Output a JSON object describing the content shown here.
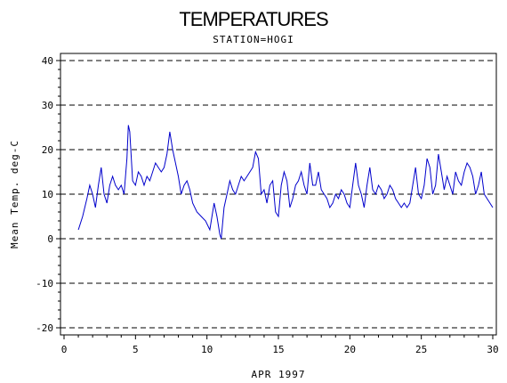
{
  "chart_data": {
    "type": "line",
    "title": "TEMPERATURES",
    "subtitle": "STATION=HOGI",
    "xlabel": "APR 1997",
    "ylabel": "Mean Temp. deg-C",
    "xlim": [
      0,
      30
    ],
    "ylim": [
      -20,
      40
    ],
    "x_ticks": [
      0,
      5,
      10,
      15,
      20,
      25,
      30
    ],
    "y_ticks": [
      -20,
      -10,
      0,
      10,
      20,
      30,
      40
    ],
    "grid": "horizontal dashed",
    "line_color": "#0000cc",
    "series": [
      {
        "x": [
          1.0,
          1.3,
          1.6,
          1.8,
          2.0,
          2.2,
          2.4,
          2.6,
          2.8,
          3.0,
          3.2,
          3.4,
          3.6,
          3.8,
          4.0,
          4.2,
          4.4,
          4.5,
          4.6,
          4.8,
          5.0,
          5.2,
          5.4,
          5.6,
          5.8,
          6.0,
          6.2,
          6.4,
          6.6,
          6.8,
          7.0,
          7.2,
          7.4,
          7.6,
          7.8,
          8.0,
          8.2,
          8.4,
          8.6,
          8.8,
          9.0,
          9.3,
          9.6,
          9.9,
          10.2,
          10.5,
          10.7,
          10.9,
          11.0,
          11.2,
          11.4,
          11.6,
          11.8,
          12.0,
          12.2,
          12.4,
          12.6,
          12.8,
          13.0,
          13.2,
          13.4,
          13.6,
          13.8,
          14.0,
          14.2,
          14.4,
          14.6,
          14.8,
          15.0,
          15.2,
          15.4,
          15.6,
          15.8,
          16.0,
          16.2,
          16.4,
          16.6,
          16.8,
          17.0,
          17.2,
          17.4,
          17.6,
          17.8,
          18.0,
          18.2,
          18.4,
          18.6,
          18.8,
          19.0,
          19.2,
          19.4,
          19.6,
          19.8,
          20.0,
          20.2,
          20.4,
          20.6,
          20.8,
          21.0,
          21.2,
          21.4,
          21.6,
          21.8,
          22.0,
          22.2,
          22.4,
          22.6,
          22.8,
          23.0,
          23.2,
          23.4,
          23.6,
          23.8,
          24.0,
          24.2,
          24.4,
          24.6,
          24.8,
          25.0,
          25.2,
          25.4,
          25.6,
          25.8,
          26.0,
          26.2,
          26.4,
          26.6,
          26.8,
          27.0,
          27.2,
          27.4,
          27.6,
          27.8,
          28.0,
          28.2,
          28.4,
          28.6,
          28.8,
          29.0,
          29.2,
          29.4,
          29.6,
          29.8,
          30.0
        ],
        "values": [
          2,
          5,
          9,
          12,
          10,
          7,
          12,
          16,
          10,
          8,
          12,
          14,
          12,
          11,
          12,
          10,
          18,
          25.5,
          24,
          13,
          12,
          15,
          14,
          12,
          14,
          13,
          15,
          17,
          16,
          15,
          16,
          19,
          24,
          20,
          17,
          14,
          10,
          12,
          13,
          11,
          8,
          6,
          5,
          4,
          2,
          8,
          5,
          1,
          0,
          7,
          10,
          13,
          11,
          10,
          12,
          14,
          13,
          14,
          15,
          16,
          19.5,
          18,
          10,
          11,
          8,
          12,
          13,
          6,
          5,
          12,
          15,
          13,
          7,
          9,
          12,
          13,
          15,
          12,
          10,
          17,
          12,
          12,
          15,
          11,
          10,
          9,
          7,
          8,
          10,
          9,
          11,
          10,
          8,
          7,
          12,
          17,
          12,
          10,
          7,
          12,
          16,
          11,
          10,
          12,
          11,
          9,
          10,
          12,
          11,
          9,
          8,
          7,
          8,
          7,
          8,
          12,
          16,
          10,
          9,
          12,
          18,
          16,
          10,
          12,
          19,
          15,
          11,
          14,
          12,
          10,
          15,
          13,
          12,
          15,
          17,
          16,
          14,
          10,
          12,
          15,
          10,
          9,
          8,
          7
        ]
      }
    ]
  }
}
